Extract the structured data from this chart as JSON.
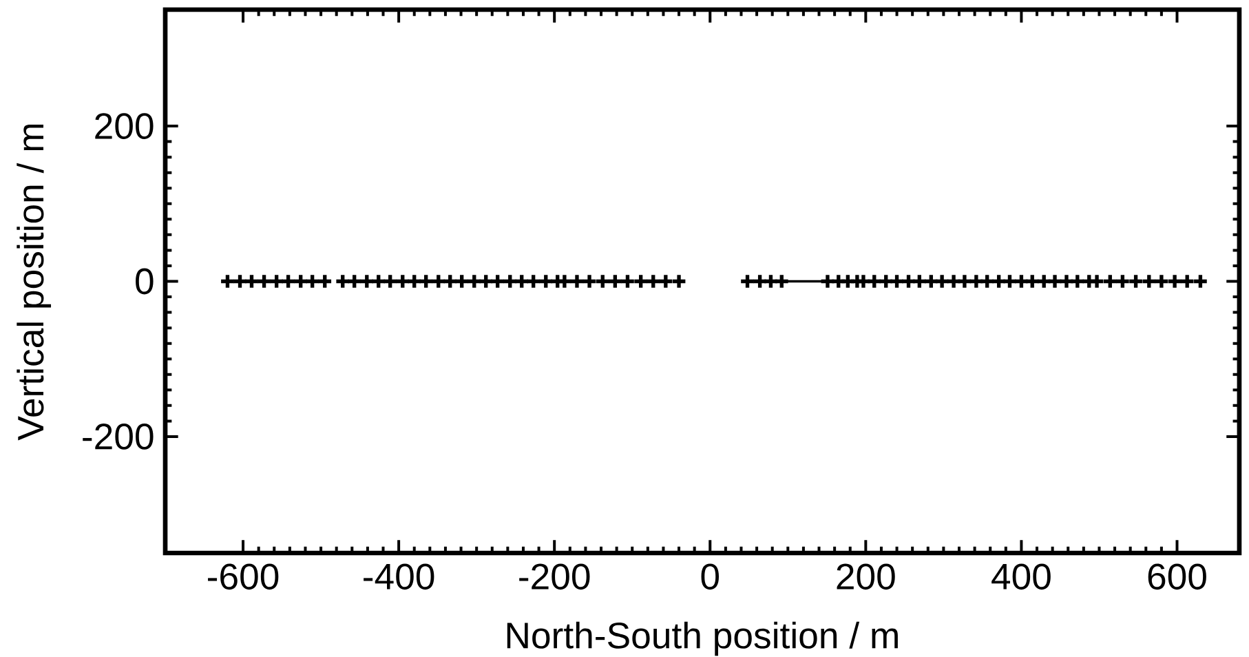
{
  "chart_data": {
    "type": "scatter",
    "xlabel": "North-South position / m",
    "ylabel": "Vertical position / m",
    "xlim": [
      -700,
      680
    ],
    "ylim": [
      -350,
      350
    ],
    "xticks": [
      -600,
      -400,
      -200,
      0,
      200,
      400,
      600
    ],
    "yticks": [
      -200,
      0,
      200
    ],
    "marker": "cross",
    "series": [
      {
        "color": "#000000",
        "x": [
          -620,
          -604,
          -589,
          -573,
          -557,
          -542,
          -526,
          -511,
          -495,
          -472,
          -457,
          -441,
          -426,
          -411,
          -395,
          -380,
          -365,
          -349,
          -334,
          -319,
          -303,
          -288,
          -273,
          -257,
          -242,
          -227,
          -211,
          -196,
          -187,
          -171,
          -155,
          -138,
          -122,
          -106,
          -89,
          -73,
          -57,
          -40,
          48,
          64,
          78,
          92,
          151,
          165,
          177,
          189,
          197,
          211,
          226,
          240,
          255,
          269,
          284,
          298,
          313,
          327,
          342,
          356,
          371,
          385,
          400,
          414,
          429,
          443,
          458,
          472,
          487,
          497,
          514,
          530,
          547,
          564,
          580,
          597,
          613,
          630
        ],
        "values": [
          0,
          0,
          0,
          0,
          0,
          0,
          0,
          0,
          0,
          0,
          0,
          0,
          0,
          0,
          0,
          0,
          0,
          0,
          0,
          0,
          0,
          0,
          0,
          0,
          0,
          0,
          0,
          0,
          0,
          0,
          0,
          0,
          0,
          0,
          0,
          0,
          0,
          0,
          0,
          0,
          0,
          0,
          0,
          0,
          0,
          0,
          0,
          0,
          0,
          0,
          0,
          0,
          0,
          0,
          0,
          0,
          0,
          0,
          0,
          0,
          0,
          0,
          0,
          0,
          0,
          0,
          0,
          0,
          0,
          0,
          0,
          0,
          0,
          0,
          0,
          0
        ]
      },
      {
        "type": "line",
        "marker": "none",
        "color": "#000000",
        "x": [
          96,
          150
        ],
        "values": [
          0,
          0
        ]
      }
    ]
  }
}
